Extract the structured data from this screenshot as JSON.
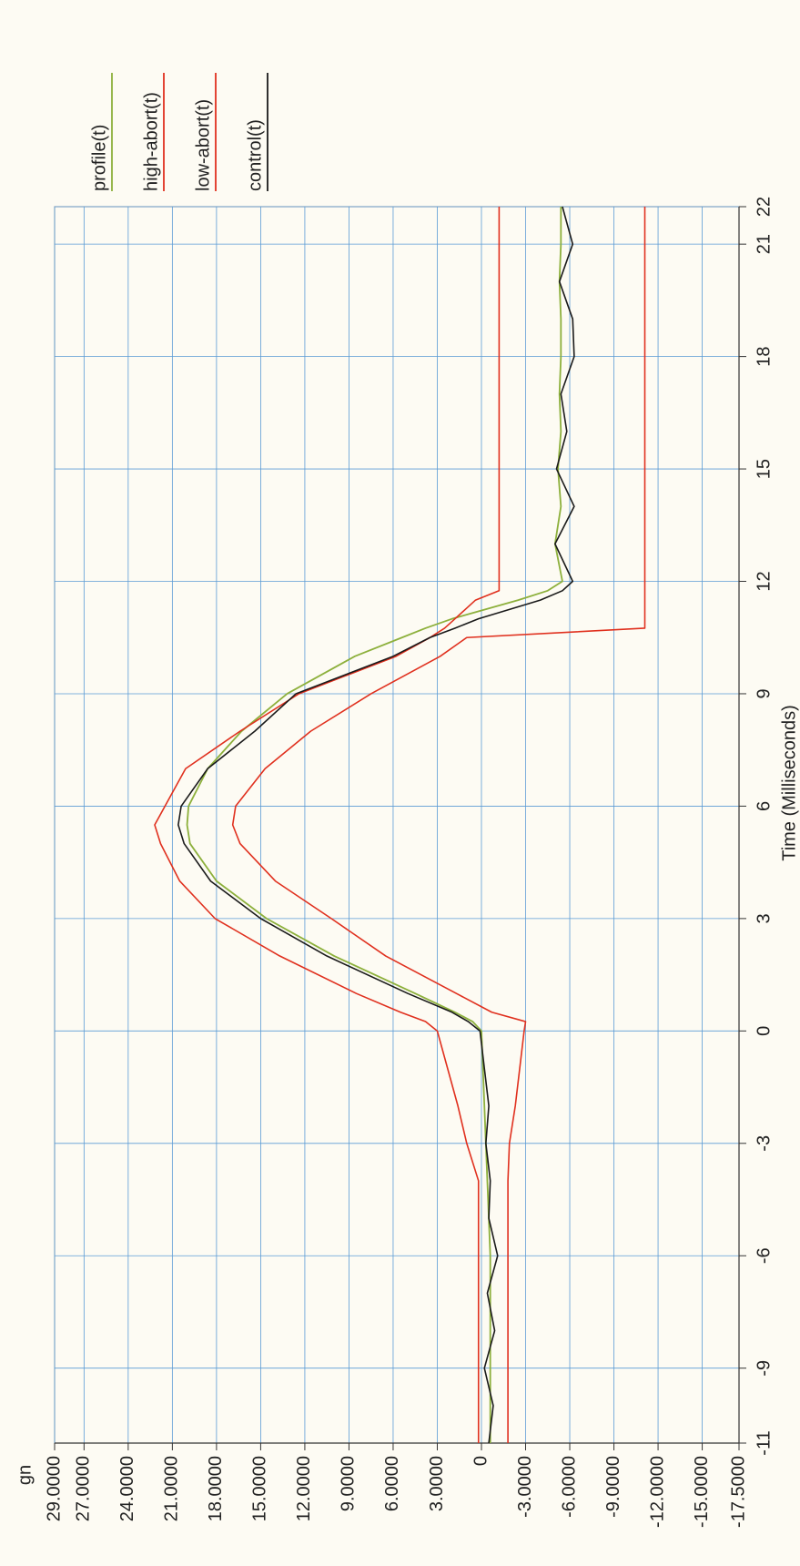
{
  "chart_data": {
    "type": "line",
    "y_label": "gn",
    "x_label": "Time (Milliseconds)",
    "x": [
      -11,
      -10,
      -9,
      -8,
      -7,
      -6,
      -5,
      -4,
      -3,
      -2,
      -1,
      0,
      0.25,
      0.5,
      1,
      2,
      3,
      4,
      5,
      5.5,
      6,
      7,
      8,
      9,
      10,
      10.5,
      10.75,
      11,
      11.5,
      11.75,
      12,
      13,
      14,
      15,
      16,
      17,
      18,
      19,
      20,
      21,
      22
    ],
    "series": [
      {
        "name": "profile(t)",
        "color": "#8db03c",
        "values": [
          -0.6,
          -0.6,
          -0.6,
          -0.6,
          -0.6,
          -0.6,
          -0.5,
          -0.4,
          -0.3,
          -0.2,
          -0.1,
          0,
          0.6,
          1.8,
          4.5,
          10.0,
          14.6,
          18.0,
          19.8,
          20.0,
          19.9,
          18.6,
          16.3,
          13.2,
          8.6,
          5.4,
          3.8,
          2.0,
          -2.5,
          -4.5,
          -5.5,
          -5.0,
          -5.4,
          -5.2,
          -5.4,
          -5.3,
          -5.4,
          -5.4,
          -5.3,
          -5.4,
          -5.4
        ]
      },
      {
        "name": "high-abort(t)",
        "color": "#e0301e",
        "values": [
          0.2,
          0.2,
          0.2,
          0.2,
          0.2,
          0.2,
          0.2,
          0.2,
          1.0,
          1.6,
          2.3,
          3.0,
          3.8,
          5.5,
          8.5,
          13.7,
          18.1,
          20.5,
          21.8,
          22.2,
          21.5,
          20.1,
          16.4,
          12.4,
          5.8,
          3.5,
          2.5,
          1.8,
          0.4,
          -1.2,
          -1.2,
          -1.2,
          -1.2,
          -1.2,
          -1.2,
          -1.2,
          -1.2,
          -1.2,
          -1.2,
          -1.2,
          -1.2
        ]
      },
      {
        "name": "low-abort(t)",
        "color": "#e0301e",
        "values": [
          -1.8,
          -1.8,
          -1.8,
          -1.8,
          -1.8,
          -1.8,
          -1.8,
          -1.8,
          -1.9,
          -2.3,
          -2.6,
          -2.9,
          -3.0,
          -0.7,
          1.7,
          6.5,
          10.2,
          14.0,
          16.4,
          16.9,
          16.7,
          14.7,
          11.6,
          7.5,
          2.8,
          1.0,
          -11.1,
          -11.1,
          -11.1,
          -11.1,
          -11.1,
          -11.1,
          -11.1,
          -11.1,
          -11.1,
          -11.1,
          -11.1,
          -11.1,
          -11.1,
          -11.1,
          -11.1
        ]
      },
      {
        "name": "control(t)",
        "color": "#1a1a1a",
        "values": [
          -0.5,
          -0.8,
          -0.2,
          -0.9,
          -0.4,
          -1.1,
          -0.5,
          -0.6,
          -0.3,
          -0.5,
          -0.2,
          0.1,
          0.9,
          2.0,
          5.0,
          10.5,
          15.0,
          18.4,
          20.2,
          20.6,
          20.4,
          18.6,
          15.4,
          12.6,
          6.0,
          3.5,
          1.8,
          0.2,
          -4.0,
          -5.5,
          -6.2,
          -5.0,
          -6.3,
          -5.1,
          -5.8,
          -5.4,
          -6.3,
          -6.2,
          -5.3,
          -6.2,
          -5.5
        ]
      }
    ],
    "xlim": [
      -11,
      22
    ],
    "xticks": [
      -11,
      -9,
      -6,
      -3,
      0,
      3,
      6,
      9,
      12,
      15,
      18,
      21,
      22
    ],
    "ylim": [
      -17.5,
      29
    ],
    "yticks": [
      {
        "value": 29,
        "label": "29.0000"
      },
      {
        "value": 27,
        "label": "27.0000"
      },
      {
        "value": 24,
        "label": "24.0000"
      },
      {
        "value": 21,
        "label": "21.0000"
      },
      {
        "value": 18,
        "label": "18.0000"
      },
      {
        "value": 15,
        "label": "15.0000"
      },
      {
        "value": 12,
        "label": "12.0000"
      },
      {
        "value": 9,
        "label": "9.0000"
      },
      {
        "value": 6,
        "label": "6.0000"
      },
      {
        "value": 3,
        "label": "3.0000"
      },
      0,
      {
        "value": -3,
        "label": "-3.0000"
      },
      {
        "value": -6,
        "label": "-6.0000"
      },
      {
        "value": -9,
        "label": "-9.0000"
      },
      {
        "value": -12,
        "label": "-12.0000"
      },
      {
        "value": -15,
        "label": "-15.0000"
      },
      {
        "value": -17.5,
        "label": "-17.5000"
      }
    ],
    "grid": true,
    "legend": "right"
  }
}
